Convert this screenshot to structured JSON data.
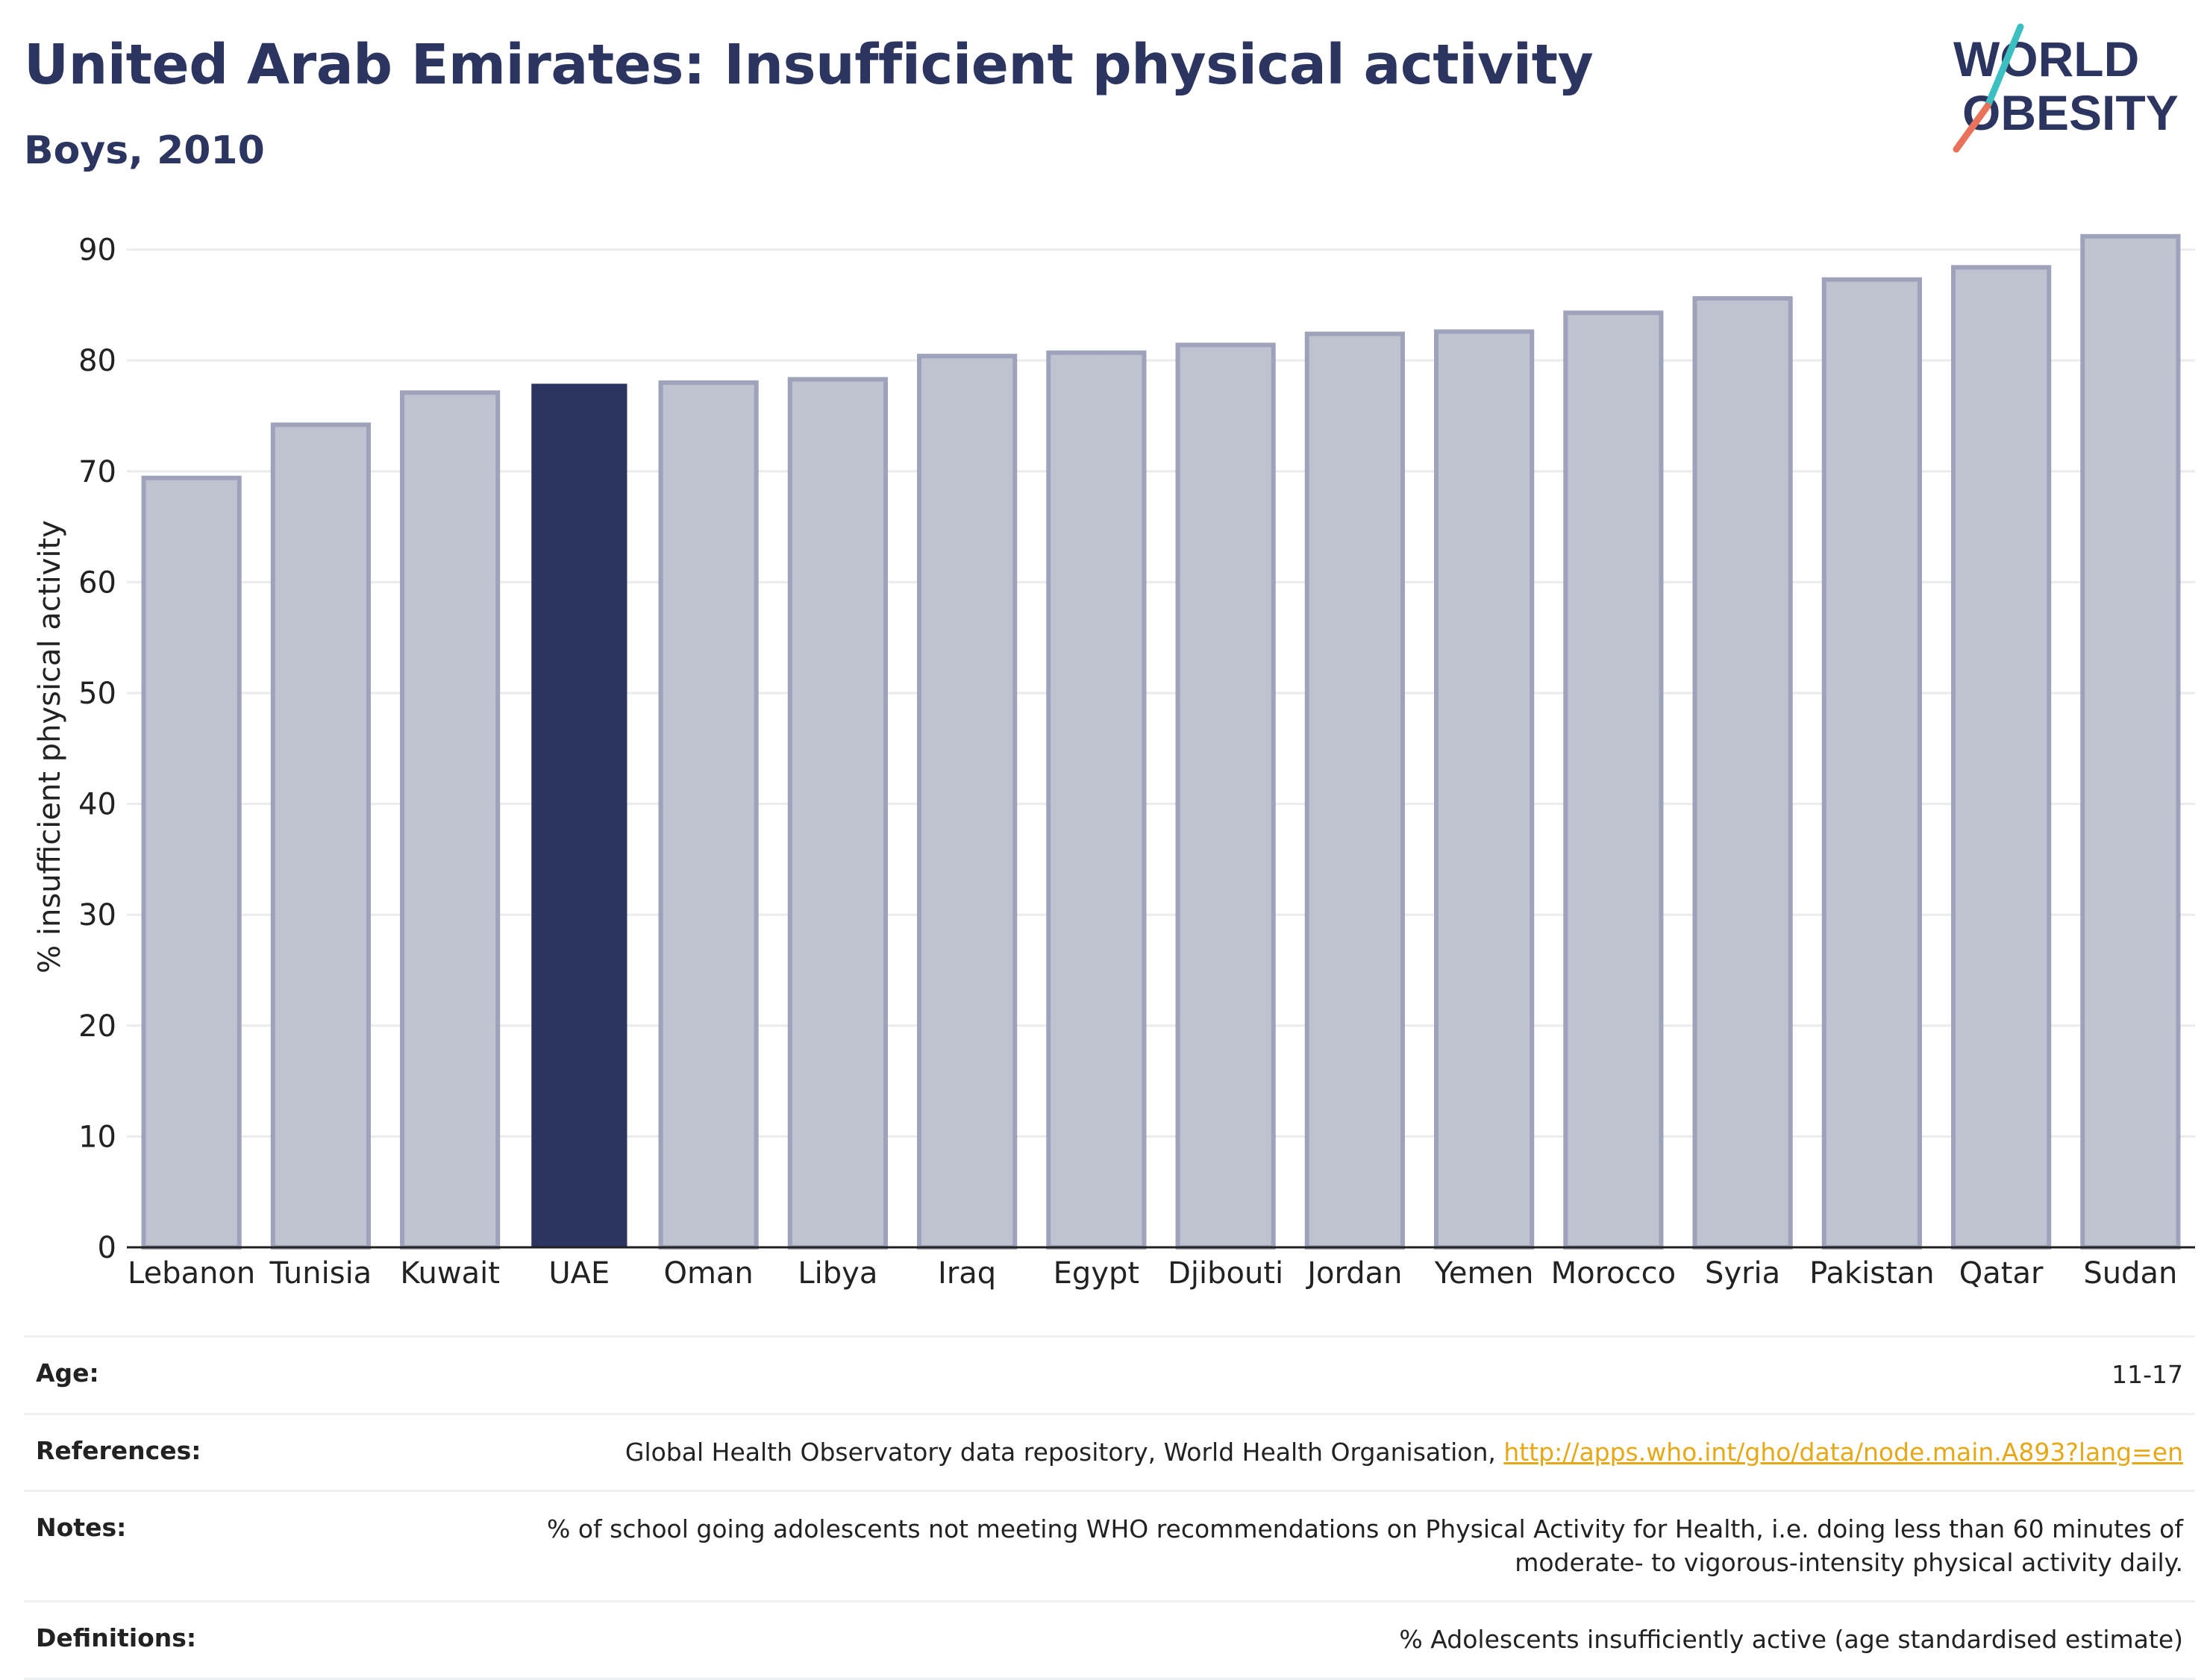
{
  "header": {
    "title": "United Arab Emirates: Insufficient physical activity",
    "subtitle": "Boys, 2010"
  },
  "logo": {
    "line1": "WORLD",
    "line2": "OBESITY",
    "colors": {
      "text": "#2b3560",
      "slash_top": "#3bbfc1",
      "slash_bottom": "#e8735a"
    }
  },
  "chart_data": {
    "type": "bar",
    "categories": [
      "Lebanon",
      "Tunisia",
      "Kuwait",
      "UAE",
      "Oman",
      "Libya",
      "Iraq",
      "Egypt",
      "Djibouti",
      "Jordan",
      "Yemen",
      "Morocco",
      "Syria",
      "Pakistan",
      "Qatar",
      "Sudan"
    ],
    "values": [
      69.4,
      74.2,
      77.1,
      77.9,
      78.0,
      78.3,
      80.4,
      80.7,
      81.4,
      82.4,
      82.6,
      84.3,
      85.6,
      87.3,
      88.4,
      91.2
    ],
    "highlight": "UAE",
    "ylabel": "% insufficient physical activity",
    "xlabel": "",
    "ylim": [
      0,
      93
    ],
    "yticks": [
      0,
      10,
      20,
      30,
      40,
      50,
      60,
      70,
      80,
      90
    ],
    "grid": true,
    "colors": {
      "bar": "#bfc2cf",
      "bar_border": "#9ea3bb",
      "highlight": "#2b3560",
      "grid": "#e9ebee",
      "axis": "#222222"
    }
  },
  "meta": {
    "age": {
      "label": "Age:",
      "value": "11-17"
    },
    "references": {
      "label": "References:",
      "value": "Global Health Observatory data repository, World Health Organisation, ",
      "link": "http://apps.who.int/gho/data/node.main.A893?lang=en"
    },
    "notes": {
      "label": "Notes:",
      "line1": "% of school going adolescents not meeting WHO recommendations on Physical Activity for Health, i.e. doing less than 60 minutes of",
      "line2": "moderate- to vigorous-intensity physical activity daily."
    },
    "definitions": {
      "label": "Definitions:",
      "value": "% Adolescents insufficiently active (age standardised estimate)"
    }
  }
}
